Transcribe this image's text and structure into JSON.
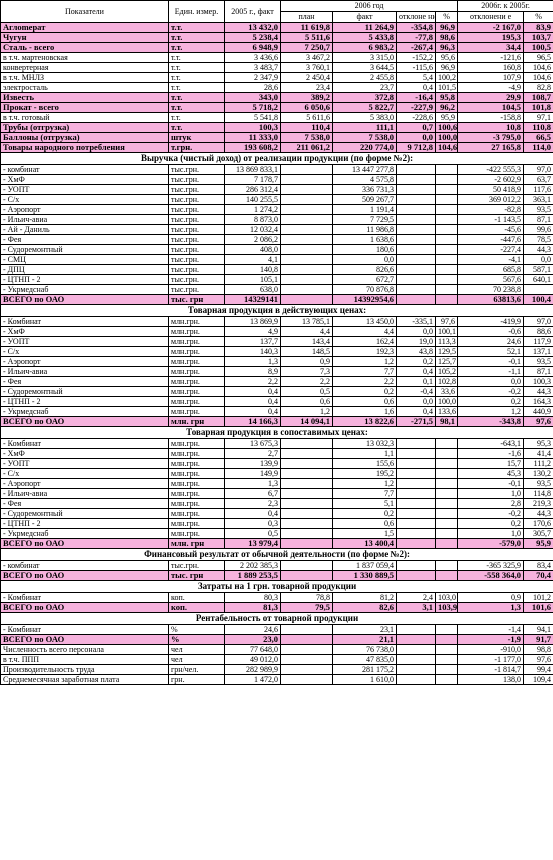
{
  "header": {
    "indicator": "Показатели",
    "unit": "Един. измер.",
    "y2005": "2005 г., факт",
    "y2006": "2006 год",
    "plan": "план",
    "fact": "факт",
    "deviation": "отклоне ние",
    "pct": "%",
    "y2006vs2005": "2006г. к 2005г.",
    "deviation2": "отклонени е",
    "pct2": "%"
  },
  "sections": [
    {
      "title": "",
      "rows": [
        {
          "hl": true,
          "c": [
            "Аглomерат",
            "т.т.",
            "13 432,0",
            "11 619,8",
            "11 264,9",
            "-354,8",
            "96,9",
            "-2 167,0",
            "83,9"
          ]
        },
        {
          "hl": true,
          "c": [
            "Чугун",
            "т.т.",
            "5 238,4",
            "5 511,6",
            "5 433,8",
            "-77,8",
            "98,6",
            "195,3",
            "103,7"
          ]
        },
        {
          "hl": true,
          "c": [
            "Сталь - всего",
            "т.т.",
            "6 948,9",
            "7 250,7",
            "6 983,2",
            "-267,4",
            "96,3",
            "34,4",
            "100,5"
          ]
        },
        {
          "hl": false,
          "c": [
            "в т.ч. мартеновская",
            "т.т.",
            "3 436,6",
            "3 467,2",
            "3 315,0",
            "-152,2",
            "95,6",
            "-121,6",
            "96,5"
          ]
        },
        {
          "hl": false,
          "c": [
            "конвертерная",
            "т.т.",
            "3 483,7",
            "3 760,1",
            "3 644,5",
            "-115,6",
            "96,9",
            "160,8",
            "104,6"
          ]
        },
        {
          "hl": false,
          "c": [
            "в т.ч. МНЛЗ",
            "т.т.",
            "2 347,9",
            "2 450,4",
            "2 455,8",
            "5,4",
            "100,2",
            "107,9",
            "104,6"
          ]
        },
        {
          "hl": false,
          "c": [
            "электросталь",
            "т.т.",
            "28,6",
            "23,4",
            "23,7",
            "0,4",
            "101,5",
            "-4,9",
            "82,8"
          ]
        },
        {
          "hl": true,
          "c": [
            "Известь",
            "т.т.",
            "343,0",
            "389,2",
            "372,8",
            "-16,4",
            "95,8",
            "29,9",
            "108,7"
          ]
        },
        {
          "hl": true,
          "c": [
            "Прокат - всего",
            "т.т.",
            "5 718,2",
            "6 050,6",
            "5 822,7",
            "-227,9",
            "96,2",
            "104,5",
            "101,8"
          ]
        },
        {
          "hl": false,
          "c": [
            "в т.ч. готовый",
            "т.т.",
            "5 541,8",
            "5 611,6",
            "5 383,0",
            "-228,6",
            "95,9",
            "-158,8",
            "97,1"
          ]
        },
        {
          "hl": true,
          "c": [
            "Трубы (отгрузка)",
            "т.т.",
            "100,3",
            "110,4",
            "111,1",
            "0,7",
            "100,6",
            "10,8",
            "110,8"
          ]
        },
        {
          "hl": true,
          "c": [
            "Баллоны (отгрузка)",
            "штук",
            "11 333,0",
            "7 538,0",
            "7 538,0",
            "0,0",
            "100,0",
            "-3 795,0",
            "66,5"
          ]
        },
        {
          "hl": true,
          "c": [
            "Товары народного потребления",
            "т.грн.",
            "193 608,2",
            "211 061,2",
            "220 774,0",
            "9 712,8",
            "104,6",
            "27 165,8",
            "114,0"
          ]
        }
      ]
    },
    {
      "title": "Выручка (чистый доход) от реализации продукции (по форме №2):",
      "rows": [
        {
          "hl": false,
          "c": [
            "- комбинат",
            "тыс.грн.",
            "13 869 833,1",
            "",
            "13 447 277,8",
            "",
            "",
            "-422 555,3",
            "97,0"
          ]
        },
        {
          "hl": false,
          "c": [
            "- ХмФ",
            "тыс.грн.",
            "7 178,7",
            "",
            "4 575,8",
            "",
            "",
            "-2 602,9",
            "63,7"
          ]
        },
        {
          "hl": false,
          "c": [
            "- УОПТ",
            "тыс.грн.",
            "286 312,4",
            "",
            "336 731,3",
            "",
            "",
            "50 418,9",
            "117,6"
          ]
        },
        {
          "hl": false,
          "c": [
            "- С/х",
            "тыс.грн.",
            "140 255,5",
            "",
            "509 267,7",
            "",
            "",
            "369 012,2",
            "363,1"
          ]
        },
        {
          "hl": false,
          "c": [
            "- Аэропорт",
            "тыс.грн.",
            "1 274,2",
            "",
            "1 191,4",
            "",
            "",
            "-82,8",
            "93,5"
          ]
        },
        {
          "hl": false,
          "c": [
            "- Ильич-авиа",
            "тыс.грн.",
            "8 873,0",
            "",
            "7 729,5",
            "",
            "",
            "-1 143,5",
            "87,1"
          ]
        },
        {
          "hl": false,
          "c": [
            "- Ай - Даниль",
            "тыс.грн.",
            "12 032,4",
            "",
            "11 986,8",
            "",
            "",
            "-45,6",
            "99,6"
          ]
        },
        {
          "hl": false,
          "c": [
            "- Фея",
            "тыс.грн.",
            "2 086,2",
            "",
            "1 638,6",
            "",
            "",
            "-447,6",
            "78,5"
          ]
        },
        {
          "hl": false,
          "c": [
            "- Судоремонтный",
            "тыс.грн.",
            "408,0",
            "",
            "180,6",
            "",
            "",
            "-227,4",
            "44,3"
          ]
        },
        {
          "hl": false,
          "c": [
            "- СМЦ",
            "тыс.грн.",
            "4,1",
            "",
            "0,0",
            "",
            "",
            "-4,1",
            "0,0"
          ]
        },
        {
          "hl": false,
          "c": [
            "- ДПЦ",
            "тыс.грн.",
            "140,8",
            "",
            "826,6",
            "",
            "",
            "685,8",
            "587,1"
          ]
        },
        {
          "hl": false,
          "c": [
            "- ЦТНП - 2",
            "тыс.грн.",
            "105,1",
            "",
            "672,7",
            "",
            "",
            "567,6",
            "640,1"
          ]
        },
        {
          "hl": false,
          "c": [
            "- Укрмедснаб",
            "тыс.грн.",
            "638,0",
            "",
            "70 876,8",
            "",
            "",
            "70 238,8",
            ""
          ]
        },
        {
          "hl": true,
          "c": [
            "ВСЕГО по ОАО",
            "тыс. грн",
            "14329141",
            "",
            "14392954,6",
            "",
            "",
            "63813,6",
            "100,4"
          ]
        }
      ]
    },
    {
      "title": "Товарная продукция в действующих ценах:",
      "rows": [
        {
          "hl": false,
          "c": [
            "- Комбинат",
            "млн.грн.",
            "13 869,9",
            "13 785,1",
            "13 450,0",
            "-335,1",
            "97,6",
            "-419,9",
            "97,0"
          ]
        },
        {
          "hl": false,
          "c": [
            "- ХмФ",
            "млн.грн.",
            "4,9",
            "4,4",
            "4,4",
            "0,0",
            "100,1",
            "-0,6",
            "88,6"
          ]
        },
        {
          "hl": false,
          "c": [
            "- УОПТ",
            "млн.грн.",
            "137,7",
            "143,4",
            "162,4",
            "19,0",
            "113,3",
            "24,6",
            "117,9"
          ]
        },
        {
          "hl": false,
          "c": [
            "- С/х",
            "млн.грн.",
            "140,3",
            "148,5",
            "192,3",
            "43,8",
            "129,5",
            "52,1",
            "137,1"
          ]
        },
        {
          "hl": false,
          "c": [
            "- Аэропорт",
            "млн.грн.",
            "1,3",
            "0,9",
            "1,2",
            "0,2",
            "125,7",
            "-0,1",
            "93,5"
          ]
        },
        {
          "hl": false,
          "c": [
            "- Ильич-авиа",
            "млн.грн.",
            "8,9",
            "7,3",
            "7,7",
            "0,4",
            "105,2",
            "-1,1",
            "87,1"
          ]
        },
        {
          "hl": false,
          "c": [
            "- Фея",
            "млн.грн.",
            "2,2",
            "2,2",
            "2,2",
            "0,1",
            "102,8",
            "0,0",
            "100,3"
          ]
        },
        {
          "hl": false,
          "c": [
            "- Судоремонтный",
            "млн.грн.",
            "0,4",
            "0,5",
            "0,2",
            "-0,4",
            "33,6",
            "-0,2",
            "44,3"
          ]
        },
        {
          "hl": false,
          "c": [
            "- ЦТНП - 2",
            "млн.грн.",
            "0,4",
            "0,6",
            "0,6",
            "0,0",
            "100,0",
            "0,2",
            "164,3"
          ]
        },
        {
          "hl": false,
          "c": [
            "- Укрмедснаб",
            "млн.грн.",
            "0,4",
            "1,2",
            "1,6",
            "0,4",
            "133,6",
            "1,2",
            "440,9"
          ]
        },
        {
          "hl": true,
          "c": [
            "ВСЕГО по ОАО",
            "млн. грн",
            "14 166,3",
            "14 094,1",
            "13 822,6",
            "-271,5",
            "98,1",
            "-343,8",
            "97,6"
          ]
        }
      ]
    },
    {
      "title": "Товарная продукция в сопоставимых ценах:",
      "rows": [
        {
          "hl": false,
          "c": [
            "- Комбинат",
            "млн.грн.",
            "13 675,3",
            "",
            "13 032,3",
            "",
            "",
            "-643,1",
            "95,3"
          ]
        },
        {
          "hl": false,
          "c": [
            "- ХмФ",
            "млн.грн.",
            "2,7",
            "",
            "1,1",
            "",
            "",
            "-1,6",
            "41,4"
          ]
        },
        {
          "hl": false,
          "c": [
            "- УОПТ",
            "млн.грн.",
            "139,9",
            "",
            "155,6",
            "",
            "",
            "15,7",
            "111,2"
          ]
        },
        {
          "hl": false,
          "c": [
            "- С/х",
            "млн.грн.",
            "149,9",
            "",
            "195,2",
            "",
            "",
            "45,3",
            "130,2"
          ]
        },
        {
          "hl": false,
          "c": [
            "- Аэропорт",
            "млн.грн.",
            "1,3",
            "",
            "1,2",
            "",
            "",
            "-0,1",
            "93,5"
          ]
        },
        {
          "hl": false,
          "c": [
            "- Ильич-авиа",
            "млн.грн.",
            "6,7",
            "",
            "7,7",
            "",
            "",
            "1,0",
            "114,8"
          ]
        },
        {
          "hl": false,
          "c": [
            "- Фея",
            "млн.грн.",
            "2,3",
            "",
            "5,1",
            "",
            "",
            "2,8",
            "219,3"
          ]
        },
        {
          "hl": false,
          "c": [
            "- Судоремонтный",
            "млн.грн.",
            "0,4",
            "",
            "0,2",
            "",
            "",
            "-0,2",
            "44,3"
          ]
        },
        {
          "hl": false,
          "c": [
            "- ЦТНП - 2",
            "млн.грн.",
            "0,3",
            "",
            "0,6",
            "",
            "",
            "0,2",
            "170,6"
          ]
        },
        {
          "hl": false,
          "c": [
            "- Укрмедснаб",
            "млн.грн.",
            "0,5",
            "",
            "1,5",
            "",
            "",
            "1,0",
            "305,7"
          ]
        },
        {
          "hl": true,
          "c": [
            "ВСЕГО по ОАО",
            "млн. грн",
            "13 979,4",
            "",
            "13 400,4",
            "",
            "",
            "-579,0",
            "95,9"
          ]
        }
      ]
    },
    {
      "title": "Финансовый результат от обычной деятельности (по форме №2):",
      "rows": [
        {
          "hl": false,
          "c": [
            "- комбинат",
            "тыс.грн.",
            "2 202 385,3",
            "",
            "1 837 059,4",
            "",
            "",
            "-365 325,9",
            "83,4"
          ]
        },
        {
          "hl": true,
          "c": [
            "ВСЕГО по ОАО",
            "тыс. грн",
            "1 889 253,5",
            "",
            "1 330 889,5",
            "",
            "",
            "-558 364,0",
            "70,4"
          ]
        }
      ]
    },
    {
      "title": "Затраты на 1 грн. товарной продукции",
      "rows": [
        {
          "hl": false,
          "c": [
            "- Комбинат",
            "коп.",
            "80,3",
            "78,8",
            "81,2",
            "2,4",
            "103,0",
            "0,9",
            "101,2"
          ]
        },
        {
          "hl": true,
          "c": [
            "ВСЕГО по ОАО",
            "коп.",
            "81,3",
            "79,5",
            "82,6",
            "3,1",
            "103,9",
            "1,3",
            "101,6"
          ]
        }
      ]
    },
    {
      "title": "Рентабельность от товарной продукции",
      "rows": [
        {
          "hl": false,
          "c": [
            "- Комбинат",
            "%",
            "24,6",
            "",
            "23,1",
            "",
            "",
            "-1,4",
            "94,1"
          ]
        },
        {
          "hl": true,
          "c": [
            "ВСЕГО по ОАО",
            "%",
            "23,0",
            "",
            "21,1",
            "",
            "",
            "-1,9",
            "91,7"
          ]
        },
        {
          "hl": false,
          "c": [
            "Численность всего персонала",
            "чел",
            "77 648,0",
            "",
            "76 738,0",
            "",
            "",
            "-910,0",
            "98,8"
          ]
        },
        {
          "hl": false,
          "c": [
            "в т.ч. ППП",
            "чел",
            "49 012,0",
            "",
            "47 835,0",
            "",
            "",
            "-1 177,0",
            "97,6"
          ]
        },
        {
          "hl": false,
          "c": [
            "Производительность труда",
            "грн/чел.",
            "282 989,9",
            "",
            "281 175,2",
            "",
            "",
            "-1 814,7",
            "99,4"
          ]
        },
        {
          "hl": false,
          "c": [
            "Среднемесячная заработная плата",
            "грн.",
            "1 472,0",
            "",
            "1 610,0",
            "",
            "",
            "138,0",
            "109,4"
          ]
        }
      ]
    }
  ]
}
